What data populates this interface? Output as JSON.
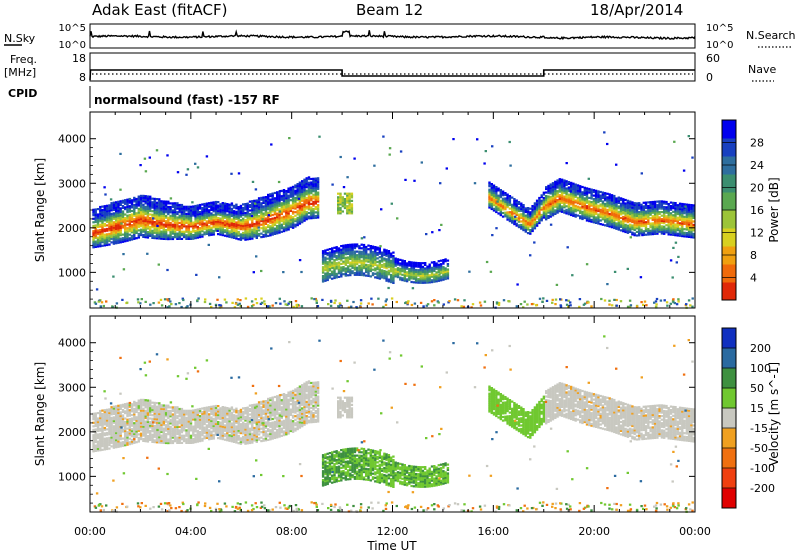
{
  "header": {
    "station": "Adak East (fitACF)",
    "beam": "Beam 12",
    "date": "18/Apr/2014"
  },
  "top_panels": {
    "nsky_label": "N.Sky",
    "nsky_ticks": [
      "10^5",
      "10^0"
    ],
    "nsearch_label": "N.Search",
    "nsearch_ticks": [
      "10^5",
      "10^0"
    ],
    "freq_label": "Freq.",
    "freq_unit": "[MHz]",
    "freq_ticks": [
      "18",
      "8"
    ],
    "nave_label": "Nave",
    "nave_ticks": [
      "60",
      "0"
    ],
    "cpid_label": "CPID",
    "cpid_text": "normalsound (fast) -157 RF",
    "freq_steps": [
      {
        "from": 0,
        "to": 10,
        "value": 13
      },
      {
        "from": 10,
        "to": 18,
        "value": 10
      },
      {
        "from": 18,
        "to": 24,
        "value": 13
      }
    ]
  },
  "time_axis": {
    "label": "Time UT",
    "ticks": [
      "00:00",
      "04:00",
      "08:00",
      "12:00",
      "16:00",
      "20:00",
      "00:00"
    ]
  },
  "chart_data": [
    {
      "type": "heatmap",
      "ylabel": "Slant Range [km]",
      "yticks": [
        "1000",
        "2000",
        "3000",
        "4000"
      ],
      "ylim": [
        200,
        4600
      ],
      "xlim": [
        0,
        24
      ],
      "colorbar": {
        "label": "Power [dB]",
        "ticks": [
          "28",
          "24",
          "20",
          "16",
          "12",
          "8",
          "4"
        ],
        "range": [
          0,
          32
        ],
        "colors": [
          "#0000ee",
          "#1840c0",
          "#2e6e9e",
          "#3b8e70",
          "#5aa850",
          "#9cc438",
          "#d8d020",
          "#f0a010",
          "#f06a0a",
          "#e02808"
        ]
      },
      "ridge": [
        [
          0.0,
          1900
        ],
        [
          1.0,
          2050
        ],
        [
          2.0,
          2200
        ],
        [
          3.0,
          2100
        ],
        [
          4.0,
          2050
        ],
        [
          5.0,
          2150
        ],
        [
          6.0,
          2050
        ],
        [
          7.0,
          2200
        ],
        [
          8.0,
          2400
        ],
        [
          8.6,
          2600
        ]
      ],
      "regions": [
        {
          "name": "night-band",
          "t0": 0.0,
          "t1": 9.0,
          "half_width": 320
        },
        {
          "name": "patch",
          "t0": 9.8,
          "t1": 10.4,
          "center": 2550,
          "half_width": 200
        },
        {
          "name": "daytime-low",
          "t0": 9.2,
          "t1": 14.2,
          "center": 1150,
          "half_width": 250
        },
        {
          "name": "evening-band",
          "t0": 15.8,
          "t1": 24.0,
          "half_width": 300
        }
      ],
      "ridge_evening": [
        [
          15.8,
          2700
        ],
        [
          16.6,
          2400
        ],
        [
          17.4,
          2100
        ],
        [
          18.0,
          2500
        ],
        [
          18.6,
          2700
        ],
        [
          19.6,
          2500
        ],
        [
          20.6,
          2350
        ],
        [
          21.6,
          2150
        ],
        [
          22.6,
          2200
        ],
        [
          24.0,
          2100
        ]
      ]
    },
    {
      "type": "heatmap",
      "ylabel": "Slant Range [km]",
      "yticks": [
        "1000",
        "2000",
        "3000",
        "4000"
      ],
      "ylim": [
        200,
        4600
      ],
      "xlim": [
        0,
        24
      ],
      "colorbar": {
        "label": "Velocity [m s^-1]",
        "ticks": [
          "200",
          "100",
          "50",
          "15",
          "-15",
          "-50",
          "-100",
          "-200"
        ],
        "colors": [
          "#1030c0",
          "#2a6aa0",
          "#3e9040",
          "#70c830",
          "#c8c8c0",
          "#f0a020",
          "#f07010",
          "#f04010",
          "#e00000"
        ]
      }
    }
  ]
}
